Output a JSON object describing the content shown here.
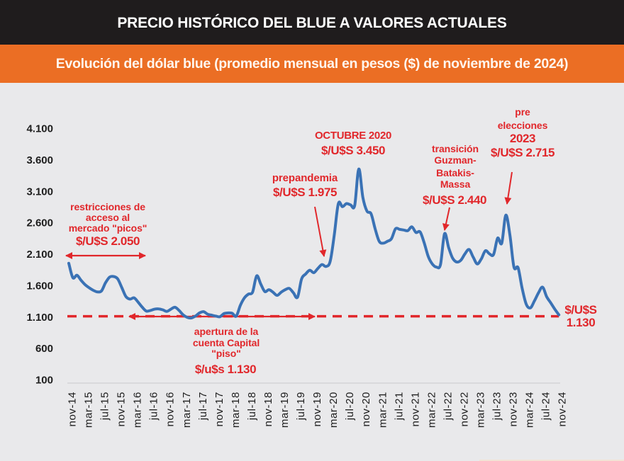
{
  "colors": {
    "title_bar": "#1f1c1d",
    "subtitle_bar": "#eb6e24",
    "background": "#e9e9eb",
    "series_line": "#3a72b5",
    "annotation": "#e1272b",
    "axis_text": "#1d1d1d"
  },
  "chart_data": {
    "type": "line",
    "title": "PRECIO HISTÓRICO DEL BLUE A VALORES ACTUALES",
    "subtitle": "Evolución del dólar blue (promedio mensual en pesos ($) de noviembre de 2024)",
    "xlabel": "",
    "ylabel": "",
    "ylim": [
      100,
      4100
    ],
    "grid": false,
    "legend": "none",
    "yticks": [
      {
        "value": 4100,
        "label": "4.100"
      },
      {
        "value": 3600,
        "label": "3.600"
      },
      {
        "value": 3100,
        "label": "3.100"
      },
      {
        "value": 2600,
        "label": "2.600"
      },
      {
        "value": 2100,
        "label": "2.100"
      },
      {
        "value": 1600,
        "label": "1.600"
      },
      {
        "value": 1100,
        "label": "1.100"
      },
      {
        "value": 600,
        "label": "600"
      },
      {
        "value": 100,
        "label": "100"
      }
    ],
    "xticks": [
      "nov-14",
      "mar-15",
      "jul-15",
      "nov-15",
      "mar-16",
      "jul-16",
      "nov-16",
      "mar-17",
      "jul-17",
      "nov-17",
      "mar-18",
      "jul-18",
      "nov-18",
      "mar-19",
      "jul-19",
      "nov-19",
      "mar-20",
      "jul-20",
      "nov-20",
      "mar-21",
      "jul-21",
      "nov-21",
      "mar-22",
      "jul-22",
      "nov-22",
      "mar-23",
      "jul-23",
      "nov-23",
      "mar-24",
      "jul-24",
      "nov-24"
    ],
    "x": [
      "nov-14",
      "dic-14",
      "ene-15",
      "feb-15",
      "mar-15",
      "abr-15",
      "may-15",
      "jun-15",
      "jul-15",
      "ago-15",
      "sep-15",
      "oct-15",
      "nov-15",
      "dic-15",
      "ene-16",
      "feb-16",
      "mar-16",
      "abr-16",
      "may-16",
      "jun-16",
      "jul-16",
      "ago-16",
      "sep-16",
      "oct-16",
      "nov-16",
      "dic-16",
      "ene-17",
      "feb-17",
      "mar-17",
      "abr-17",
      "may-17",
      "jun-17",
      "jul-17",
      "ago-17",
      "sep-17",
      "oct-17",
      "nov-17",
      "dic-17",
      "ene-18",
      "feb-18",
      "mar-18",
      "abr-18",
      "may-18",
      "jun-18",
      "jul-18",
      "ago-18",
      "sep-18",
      "oct-18",
      "nov-18",
      "dic-18",
      "ene-19",
      "feb-19",
      "mar-19",
      "abr-19",
      "may-19",
      "jun-19",
      "jul-19",
      "ago-19",
      "sep-19",
      "oct-19",
      "nov-19",
      "dic-19",
      "ene-20",
      "feb-20",
      "mar-20",
      "abr-20",
      "may-20",
      "jun-20",
      "jul-20",
      "ago-20",
      "sep-20",
      "oct-20",
      "nov-20",
      "dic-20",
      "ene-21",
      "feb-21",
      "mar-21",
      "abr-21",
      "may-21",
      "jun-21",
      "jul-21",
      "ago-21",
      "sep-21",
      "oct-21",
      "nov-21",
      "dic-21",
      "ene-22",
      "feb-22",
      "mar-22",
      "abr-22",
      "may-22",
      "jun-22",
      "jul-22",
      "ago-22",
      "sep-22",
      "oct-22",
      "nov-22",
      "dic-22",
      "ene-23",
      "feb-23",
      "mar-23",
      "abr-23",
      "may-23",
      "jun-23",
      "jul-23",
      "ago-23",
      "sep-23",
      "oct-23",
      "nov-23",
      "dic-23",
      "ene-24",
      "feb-24",
      "mar-24",
      "abr-24",
      "may-24",
      "jun-24",
      "jul-24",
      "ago-24",
      "sep-24",
      "oct-24",
      "nov-24"
    ],
    "series": [
      {
        "name": "Dólar blue (promedio mensual, pesos de nov-2024)",
        "color": "#3a72b5",
        "values": [
          1950,
          1720,
          1760,
          1680,
          1610,
          1560,
          1520,
          1495,
          1510,
          1640,
          1730,
          1740,
          1700,
          1560,
          1420,
          1380,
          1400,
          1330,
          1250,
          1190,
          1200,
          1220,
          1225,
          1210,
          1185,
          1220,
          1250,
          1200,
          1130,
          1090,
          1080,
          1110,
          1160,
          1180,
          1140,
          1125,
          1110,
          1100,
          1150,
          1160,
          1155,
          1110,
          1280,
          1400,
          1460,
          1490,
          1750,
          1620,
          1500,
          1530,
          1490,
          1440,
          1490,
          1530,
          1550,
          1480,
          1410,
          1700,
          1780,
          1840,
          1800,
          1870,
          1930,
          1900,
          1980,
          2400,
          2900,
          2850,
          2900,
          2880,
          2870,
          3450,
          3000,
          2780,
          2740,
          2500,
          2300,
          2270,
          2300,
          2340,
          2500,
          2490,
          2480,
          2470,
          2530,
          2440,
          2450,
          2280,
          2060,
          1940,
          1890,
          1930,
          2420,
          2200,
          2030,
          1970,
          2000,
          2100,
          2170,
          2050,
          1940,
          2020,
          2150,
          2100,
          2090,
          2350,
          2270,
          2715,
          2400,
          1890,
          1880,
          1550,
          1300,
          1240,
          1350,
          1480,
          1570,
          1420,
          1320,
          1220,
          1130
        ]
      }
    ],
    "reference_line": {
      "value": 1130,
      "style": "dashed",
      "color": "#e1272b"
    },
    "annotations": {
      "restricciones": {
        "lines": [
          "restricciones de",
          "acceso al",
          "mercado \"picos\""
        ],
        "value": "$/U$S 2.050"
      },
      "apertura": {
        "lines": [
          "apertura de la",
          "cuenta Capital",
          "\"piso\""
        ],
        "value": "$/u$s 1.130"
      },
      "prepandemia": {
        "lines": [
          "prepandemia"
        ],
        "value": "$/U$S 1.975"
      },
      "octubre_2020": {
        "title": "OCTUBRE 2020",
        "value": "$/U$S 3.450"
      },
      "transicion": {
        "lines": [
          "transición",
          "Guzman-",
          "Batakis-",
          "Massa"
        ],
        "value": "$/U$S 2.440"
      },
      "pre_elecciones": {
        "lines": [
          "pre",
          "elecciones"
        ],
        "year": "2023",
        "value": "$/U$S 2.715"
      },
      "actual": {
        "lines": [
          "$/U$S",
          "1.130"
        ]
      }
    }
  }
}
